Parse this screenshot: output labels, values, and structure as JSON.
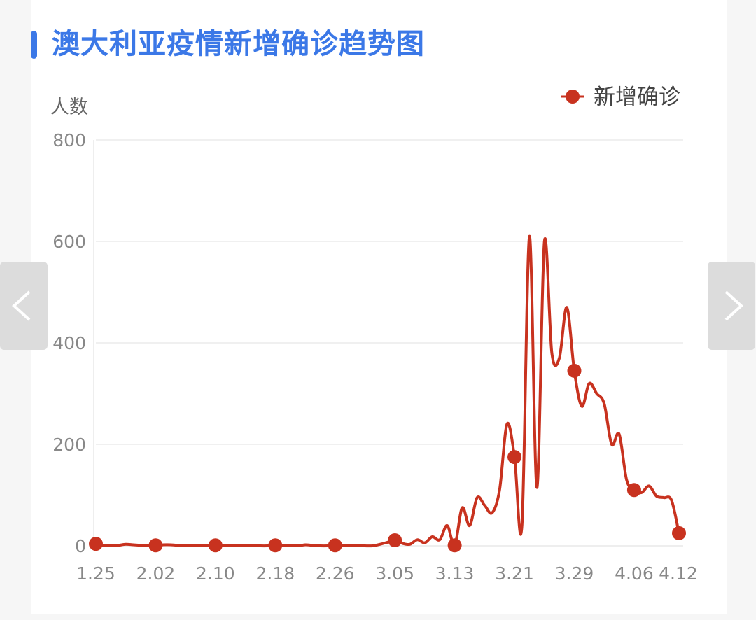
{
  "title": "澳大利亚疫情新增确诊趋势图",
  "nav": {
    "prev_icon": "chevron-left-icon",
    "next_icon": "chevron-right-icon"
  },
  "colors": {
    "title": "#3b78e7",
    "series": "#c8321f",
    "grid": "#e6e6e6",
    "tick": "#888888"
  },
  "chart_data": {
    "type": "line",
    "smooth": true,
    "ylabel": "人数",
    "ylim": [
      0,
      800
    ],
    "yticks": [
      0,
      200,
      400,
      600,
      800
    ],
    "grid": true,
    "legend_position": "top-right",
    "x_tick_labels": [
      "1.25",
      "2.02",
      "2.10",
      "2.18",
      "2.26",
      "3.05",
      "3.13",
      "3.21",
      "3.29",
      "4.06",
      "4.12"
    ],
    "x": [
      "1.25",
      "1.26",
      "1.27",
      "1.28",
      "1.29",
      "1.30",
      "1.31",
      "2.01",
      "2.02",
      "2.03",
      "2.04",
      "2.05",
      "2.06",
      "2.07",
      "2.08",
      "2.09",
      "2.10",
      "2.11",
      "2.12",
      "2.13",
      "2.14",
      "2.15",
      "2.16",
      "2.17",
      "2.18",
      "2.19",
      "2.20",
      "2.21",
      "2.22",
      "2.23",
      "2.24",
      "2.25",
      "2.26",
      "2.27",
      "2.28",
      "2.29",
      "3.01",
      "3.02",
      "3.03",
      "3.04",
      "3.05",
      "3.06",
      "3.07",
      "3.08",
      "3.09",
      "3.10",
      "3.11",
      "3.12",
      "3.13",
      "3.14",
      "3.15",
      "3.16",
      "3.17",
      "3.18",
      "3.19",
      "3.20",
      "3.21",
      "3.22",
      "3.23",
      "3.24",
      "3.25",
      "3.26",
      "3.27",
      "3.28",
      "3.29",
      "3.30",
      "3.31",
      "4.01",
      "4.02",
      "4.03",
      "4.04",
      "4.05",
      "4.06",
      "4.07",
      "4.08",
      "4.09",
      "4.10",
      "4.11",
      "4.12"
    ],
    "series": [
      {
        "name": "新增确诊",
        "color": "#c8321f",
        "marker_every": 8,
        "values": [
          4,
          1,
          0,
          1,
          3,
          2,
          1,
          0,
          1,
          2,
          2,
          1,
          0,
          1,
          1,
          0,
          1,
          0,
          1,
          0,
          1,
          1,
          0,
          0,
          1,
          0,
          1,
          0,
          2,
          1,
          0,
          0,
          1,
          0,
          1,
          1,
          0,
          0,
          3,
          7,
          11,
          5,
          3,
          12,
          6,
          18,
          12,
          40,
          1,
          75,
          40,
          95,
          80,
          65,
          110,
          240,
          175,
          40,
          610,
          115,
          600,
          380,
          370,
          470,
          345,
          275,
          320,
          300,
          280,
          200,
          220,
          130,
          110,
          105,
          118,
          98,
          95,
          90,
          25
        ]
      }
    ]
  }
}
